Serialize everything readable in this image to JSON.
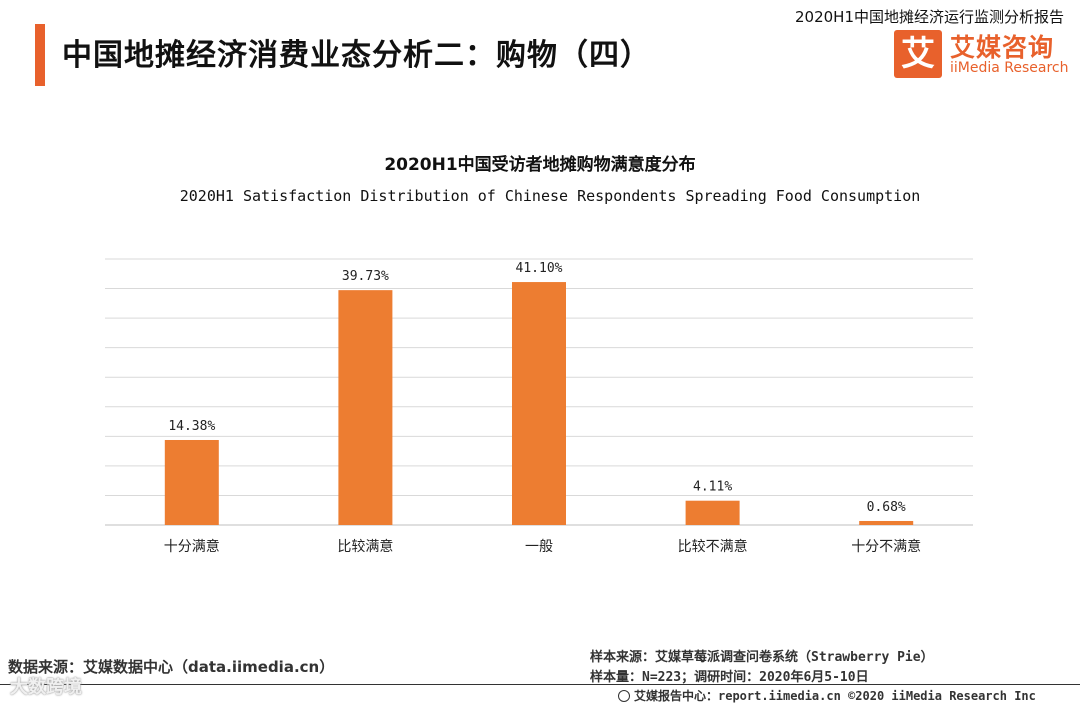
{
  "header": {
    "title": "中国地摊经济消费业态分析二：购物（四）",
    "report_name": "2020H1中国地摊经济运行监测分析报告",
    "logo_mark": "艾",
    "logo_cn": "艾媒咨询",
    "logo_en": "iiMedia Research"
  },
  "colors": {
    "accent": "#e8612c",
    "bar": "#ed7d31",
    "grid": "#d9d9d9"
  },
  "chart_data": {
    "type": "bar",
    "title": "2020H1中国受访者地摊购物满意度分布",
    "subtitle": "2020H1 Satisfaction Distribution of Chinese Respondents Spreading Food Consumption",
    "categories": [
      "十分满意",
      "比较满意",
      "一般",
      "比较不满意",
      "十分不满意"
    ],
    "values": [
      14.38,
      39.73,
      41.1,
      4.11,
      0.68
    ],
    "value_labels": [
      "14.38%",
      "39.73%",
      "41.10%",
      "4.11%",
      "0.68%"
    ],
    "ylim": [
      0,
      45
    ],
    "grid": true,
    "legend": "none"
  },
  "footer": {
    "data_source": "数据来源：艾媒数据中心（data.iimedia.cn）",
    "sample_source": "样本来源：艾媒草莓派调查问卷系统（Strawberry Pie）",
    "sample_size": "样本量：N=223；调研时间：2020年6月5-10日",
    "site": "艾媒报告中心：report.iimedia.cn  ©2020  iiMedia Research  Inc",
    "watermark": "大数跨境"
  }
}
